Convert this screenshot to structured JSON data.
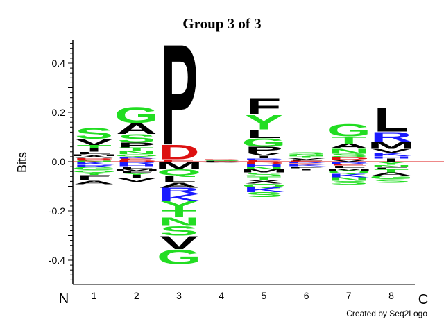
{
  "chart_data": {
    "type": "sequence-logo",
    "title": "Group 3 of 3",
    "ylabel": "Bits",
    "ylim": [
      -0.5,
      0.5
    ],
    "yticks": [
      -0.4,
      -0.2,
      0.0,
      0.2,
      0.4
    ],
    "ytick_labels": [
      "-0.4",
      "-0.2",
      "0.0",
      "0.2",
      "0.4"
    ],
    "positions": [
      "1",
      "2",
      "3",
      "4",
      "5",
      "6",
      "7",
      "8"
    ],
    "n_label": "N",
    "c_label": "C",
    "credit": "Created by Seq2Logo",
    "colors": {
      "polar": "#22dd22",
      "hydrophobic": "#000000",
      "basic": "#1a1aff",
      "acidic": "#dd1111",
      "other": "#d070d0"
    },
    "columns": [
      {
        "position": "1",
        "positive": [
          {
            "aa": "S",
            "bits": 0.045
          },
          {
            "aa": "V",
            "bits": 0.025
          },
          {
            "aa": "T",
            "bits": 0.015
          },
          {
            "aa": "I",
            "bits": 0.012
          },
          {
            "aa": "L",
            "bits": 0.01
          },
          {
            "aa": "M",
            "bits": 0.008
          },
          {
            "aa": "A",
            "bits": 0.008
          },
          {
            "aa": "D",
            "bits": 0.006
          },
          {
            "aa": "E",
            "bits": 0.005
          },
          {
            "aa": "N",
            "bits": 0.004
          }
        ],
        "negative": [
          {
            "aa": "K",
            "bits": 0.012
          },
          {
            "aa": "R",
            "bits": 0.01
          },
          {
            "aa": "G",
            "bits": 0.012
          },
          {
            "aa": "Q",
            "bits": 0.01
          },
          {
            "aa": "Y",
            "bits": 0.01
          },
          {
            "aa": "F",
            "bits": 0.01
          },
          {
            "aa": "L",
            "bits": 0.012
          },
          {
            "aa": "A",
            "bits": 0.015
          }
        ]
      },
      {
        "position": "2",
        "positive": [
          {
            "aa": "G",
            "bits": 0.065
          },
          {
            "aa": "A",
            "bits": 0.045
          },
          {
            "aa": "S",
            "bits": 0.035
          },
          {
            "aa": "P",
            "bits": 0.02
          },
          {
            "aa": "T",
            "bits": 0.015
          },
          {
            "aa": "N",
            "bits": 0.012
          },
          {
            "aa": "Q",
            "bits": 0.01
          },
          {
            "aa": "K",
            "bits": 0.008
          },
          {
            "aa": "E",
            "bits": 0.007
          },
          {
            "aa": "D",
            "bits": 0.006
          }
        ],
        "negative": [
          {
            "aa": "R",
            "bits": 0.01
          },
          {
            "aa": "H",
            "bits": 0.008
          },
          {
            "aa": "L",
            "bits": 0.01
          },
          {
            "aa": "M",
            "bits": 0.01
          },
          {
            "aa": "F",
            "bits": 0.008
          },
          {
            "aa": "Y",
            "bits": 0.008
          },
          {
            "aa": "I",
            "bits": 0.012
          },
          {
            "aa": "V",
            "bits": 0.015
          }
        ]
      },
      {
        "position": "3",
        "positive": [
          {
            "aa": "P",
            "bits": 0.42
          },
          {
            "aa": "D",
            "bits": 0.06
          },
          {
            "aa": "E",
            "bits": 0.01
          }
        ],
        "negative": [
          {
            "aa": "M",
            "bits": 0.03
          },
          {
            "aa": "Q",
            "bits": 0.025
          },
          {
            "aa": "L",
            "bits": 0.03
          },
          {
            "aa": "A",
            "bits": 0.02
          },
          {
            "aa": "R",
            "bits": 0.025
          },
          {
            "aa": "K",
            "bits": 0.03
          },
          {
            "aa": "Y",
            "bits": 0.035
          },
          {
            "aa": "T",
            "bits": 0.03
          },
          {
            "aa": "N",
            "bits": 0.035
          },
          {
            "aa": "S",
            "bits": 0.04
          },
          {
            "aa": "V",
            "bits": 0.055
          },
          {
            "aa": "G",
            "bits": 0.06
          }
        ]
      },
      {
        "position": "4",
        "positive": [
          {
            "aa": "D",
            "bits": 0.004
          },
          {
            "aa": "S",
            "bits": 0.003
          },
          {
            "aa": "P",
            "bits": 0.003
          }
        ],
        "negative": [
          {
            "aa": "K",
            "bits": 0.002
          },
          {
            "aa": "V",
            "bits": 0.002
          }
        ]
      },
      {
        "position": "5",
        "positive": [
          {
            "aa": "F",
            "bits": 0.07
          },
          {
            "aa": "Y",
            "bits": 0.06
          },
          {
            "aa": "L",
            "bits": 0.035
          },
          {
            "aa": "G",
            "bits": 0.035
          },
          {
            "aa": "P",
            "bits": 0.025
          },
          {
            "aa": "V",
            "bits": 0.012
          },
          {
            "aa": "I",
            "bits": 0.01
          },
          {
            "aa": "R",
            "bits": 0.008
          },
          {
            "aa": "E",
            "bits": 0.006
          }
        ],
        "negative": [
          {
            "aa": "D",
            "bits": 0.01
          },
          {
            "aa": "H",
            "bits": 0.01
          },
          {
            "aa": "N",
            "bits": 0.012
          },
          {
            "aa": "M",
            "bits": 0.012
          },
          {
            "aa": "S",
            "bits": 0.015
          },
          {
            "aa": "T",
            "bits": 0.015
          },
          {
            "aa": "X",
            "bits": 0.015
          },
          {
            "aa": "Q",
            "bits": 0.015
          },
          {
            "aa": "K",
            "bits": 0.02
          },
          {
            "aa": "S",
            "bits": 0.02
          }
        ]
      },
      {
        "position": "6",
        "positive": [
          {
            "aa": "S",
            "bits": 0.01
          },
          {
            "aa": "N",
            "bits": 0.008
          },
          {
            "aa": "T",
            "bits": 0.007
          },
          {
            "aa": "V",
            "bits": 0.006
          },
          {
            "aa": "L",
            "bits": 0.005
          },
          {
            "aa": "E",
            "bits": 0.004
          }
        ],
        "negative": [
          {
            "aa": "R",
            "bits": 0.006
          },
          {
            "aa": "D",
            "bits": 0.006
          },
          {
            "aa": "K",
            "bits": 0.007
          },
          {
            "aa": "P",
            "bits": 0.008
          },
          {
            "aa": "I",
            "bits": 0.008
          }
        ]
      },
      {
        "position": "7",
        "positive": [
          {
            "aa": "G",
            "bits": 0.05
          },
          {
            "aa": "T",
            "bits": 0.03
          },
          {
            "aa": "A",
            "bits": 0.02
          },
          {
            "aa": "N",
            "bits": 0.02
          },
          {
            "aa": "S",
            "bits": 0.015
          },
          {
            "aa": "D",
            "bits": 0.01
          },
          {
            "aa": "V",
            "bits": 0.008
          }
        ],
        "negative": [
          {
            "aa": "R",
            "bits": 0.008
          },
          {
            "aa": "E",
            "bits": 0.008
          },
          {
            "aa": "L",
            "bits": 0.01
          },
          {
            "aa": "M",
            "bits": 0.01
          },
          {
            "aa": "Q",
            "bits": 0.012
          },
          {
            "aa": "K",
            "bits": 0.015
          },
          {
            "aa": "N",
            "bits": 0.015
          },
          {
            "aa": "S",
            "bits": 0.015
          }
        ]
      },
      {
        "position": "8",
        "positive": [
          {
            "aa": "L",
            "bits": 0.1
          },
          {
            "aa": "R",
            "bits": 0.04
          },
          {
            "aa": "M",
            "bits": 0.03
          },
          {
            "aa": "V",
            "bits": 0.015
          },
          {
            "aa": "K",
            "bits": 0.015
          },
          {
            "aa": "H",
            "bits": 0.01
          },
          {
            "aa": "I",
            "bits": 0.012
          }
        ],
        "negative": [
          {
            "aa": "Y",
            "bits": 0.012
          },
          {
            "aa": "N",
            "bits": 0.01
          },
          {
            "aa": "F",
            "bits": 0.01
          },
          {
            "aa": "T",
            "bits": 0.012
          },
          {
            "aa": "A",
            "bits": 0.012
          },
          {
            "aa": "G",
            "bits": 0.015
          },
          {
            "aa": "S",
            "bits": 0.015
          }
        ]
      }
    ]
  }
}
